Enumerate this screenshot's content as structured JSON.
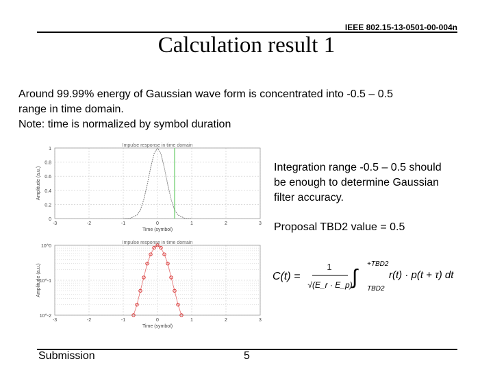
{
  "header": {
    "doc_id": "IEEE 802.15-13-0501-00-004n"
  },
  "slide": {
    "title": "Calculation result 1",
    "body_lines": [
      "Around 99.99% energy of Gaussian wave form is concentrated into -0.5 – 0.5",
      "range in time domain.",
      "Note: time is normalized by symbol duration"
    ],
    "note1_lines": [
      "Integration range -0.5 – 0.5 should",
      "be enough to determine Gaussian",
      "filter accuracy."
    ],
    "note2": "Proposal TBD2 value = 0.5"
  },
  "formula": {
    "lhs": "C(t) =",
    "numerator": "1",
    "denominator": "√(E_r · E_p)",
    "upper_limit": "+TBD2",
    "lower_limit": "TBD2",
    "integrand": "r(t) · p(t + τ) dt"
  },
  "chart_data": [
    {
      "type": "line",
      "title": "Impulse response in time domain",
      "xlabel": "Time (symbol)",
      "ylabel": "Amplitude (a.u.)",
      "xlim": [
        -3,
        3
      ],
      "ylim": [
        0,
        1
      ],
      "xticks": [
        "-3",
        "-2",
        "-1",
        "0",
        "1",
        "2",
        "3"
      ],
      "yticks": [
        "0",
        "0.2",
        "0.4",
        "0.6",
        "0.8",
        "1"
      ],
      "grid": true,
      "series": [
        {
          "x": [
            -1.0,
            -0.8,
            -0.6,
            -0.5,
            -0.4,
            -0.3,
            -0.2,
            -0.1,
            0,
            0.1,
            0.2,
            0.3,
            0.4,
            0.5,
            0.6,
            0.8,
            1.0
          ],
          "values": [
            0,
            0.003,
            0.05,
            0.12,
            0.27,
            0.48,
            0.72,
            0.92,
            1.0,
            0.92,
            0.72,
            0.48,
            0.27,
            0.12,
            0.05,
            0.003,
            0
          ]
        }
      ],
      "vlines": [
        0.5
      ],
      "colors": {
        "curve": "#808080",
        "vline": "#66cc66",
        "grid": "#c8c8c8"
      }
    },
    {
      "type": "scatter",
      "title": "Impulse response in time domain",
      "xlabel": "Time (symbol)",
      "ylabel": "Amplitude (a.u.)",
      "xlim": [
        -3,
        3
      ],
      "ylim": [
        0.01,
        1
      ],
      "yscale": "log",
      "xticks": [
        "-3",
        "-2",
        "-1",
        "0",
        "1",
        "2",
        "3"
      ],
      "yticks": [
        "10^-2",
        "10^-1",
        "10^0"
      ],
      "grid": true,
      "series": [
        {
          "x": [
            -0.7,
            -0.6,
            -0.5,
            -0.4,
            -0.3,
            -0.2,
            -0.1,
            0,
            0.1,
            0.2,
            0.3,
            0.4,
            0.5,
            0.6,
            0.7
          ],
          "values": [
            0.01,
            0.02,
            0.05,
            0.12,
            0.3,
            0.55,
            0.85,
            1.0,
            0.85,
            0.55,
            0.3,
            0.12,
            0.05,
            0.02,
            0.01
          ]
        }
      ],
      "colors": {
        "curve": "#d83030",
        "grid": "#c8c8c8"
      }
    }
  ],
  "footer": {
    "left": "Submission",
    "page": "5"
  }
}
